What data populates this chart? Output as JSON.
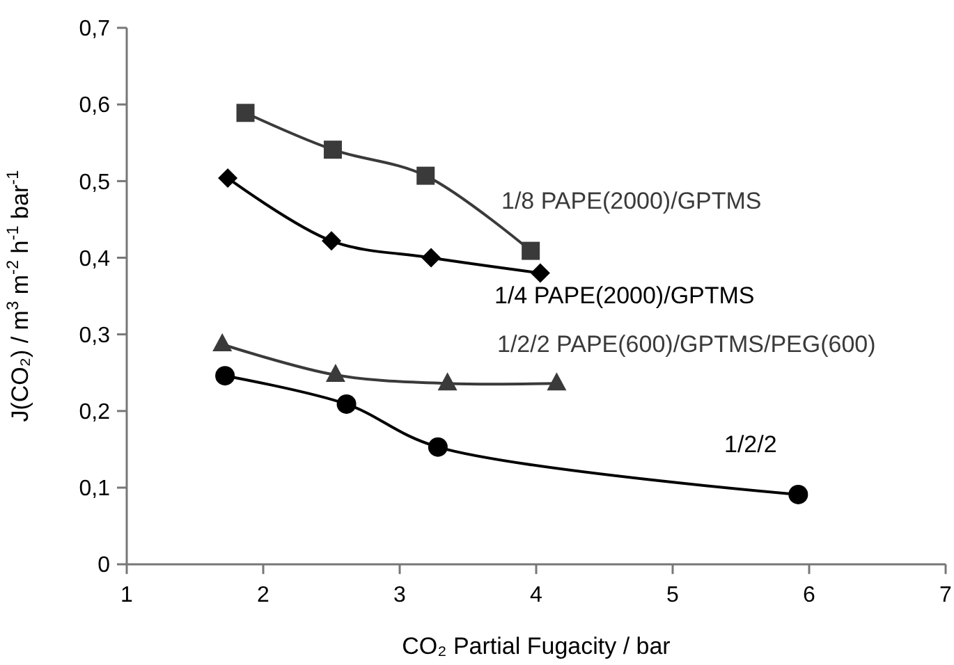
{
  "chart_data": {
    "type": "line",
    "xlabel": "CO₂ Partial Fugacity / bar",
    "ylabel": "J(CO₂) / m$^{3}$ m$^{-2}$ h$^{-1}$ bar$^{-1}$",
    "xlim": [
      1,
      7
    ],
    "xticks": [
      1,
      2,
      3,
      4,
      5,
      6,
      7
    ],
    "ylim": [
      0,
      0.7
    ],
    "yticks": [
      {
        "value": 0,
        "label": "0"
      },
      {
        "value": 0.1,
        "label": "0,1"
      },
      {
        "value": 0.2,
        "label": "0,2"
      },
      {
        "value": 0.3,
        "label": "0,3"
      },
      {
        "value": 0.4,
        "label": "0,4"
      },
      {
        "value": 0.5,
        "label": "0,5"
      },
      {
        "value": 0.6,
        "label": "0,6"
      },
      {
        "value": 0.7,
        "label": "0,7"
      }
    ],
    "grid": false,
    "line_style": "solid",
    "series": [
      {
        "name": "1/8 PAPE(2000)/GPTMS",
        "color": "#3a3a3a",
        "marker": "square",
        "x": [
          1.87,
          2.51,
          3.19,
          3.96
        ],
        "values": [
          0.589,
          0.541,
          0.507,
          0.409
        ]
      },
      {
        "name": "1/4 PAPE(2000)/GPTMS",
        "color": "#000000",
        "marker": "diamond",
        "x": [
          1.74,
          2.5,
          3.23,
          4.03
        ],
        "values": [
          0.504,
          0.422,
          0.4,
          0.38
        ]
      },
      {
        "name": "1/2/2 PAPE(600)/GPTMS/PEG(600)",
        "color": "#3a3a3a",
        "marker": "triangle",
        "x": [
          1.7,
          2.53,
          3.35,
          4.15
        ],
        "values": [
          0.287,
          0.247,
          0.236,
          0.236
        ]
      },
      {
        "name": "1/2/2",
        "color": "#000000",
        "marker": "circle",
        "x": [
          1.72,
          2.61,
          3.28,
          5.92
        ],
        "values": [
          0.246,
          0.209,
          0.153,
          0.091
        ]
      }
    ]
  }
}
